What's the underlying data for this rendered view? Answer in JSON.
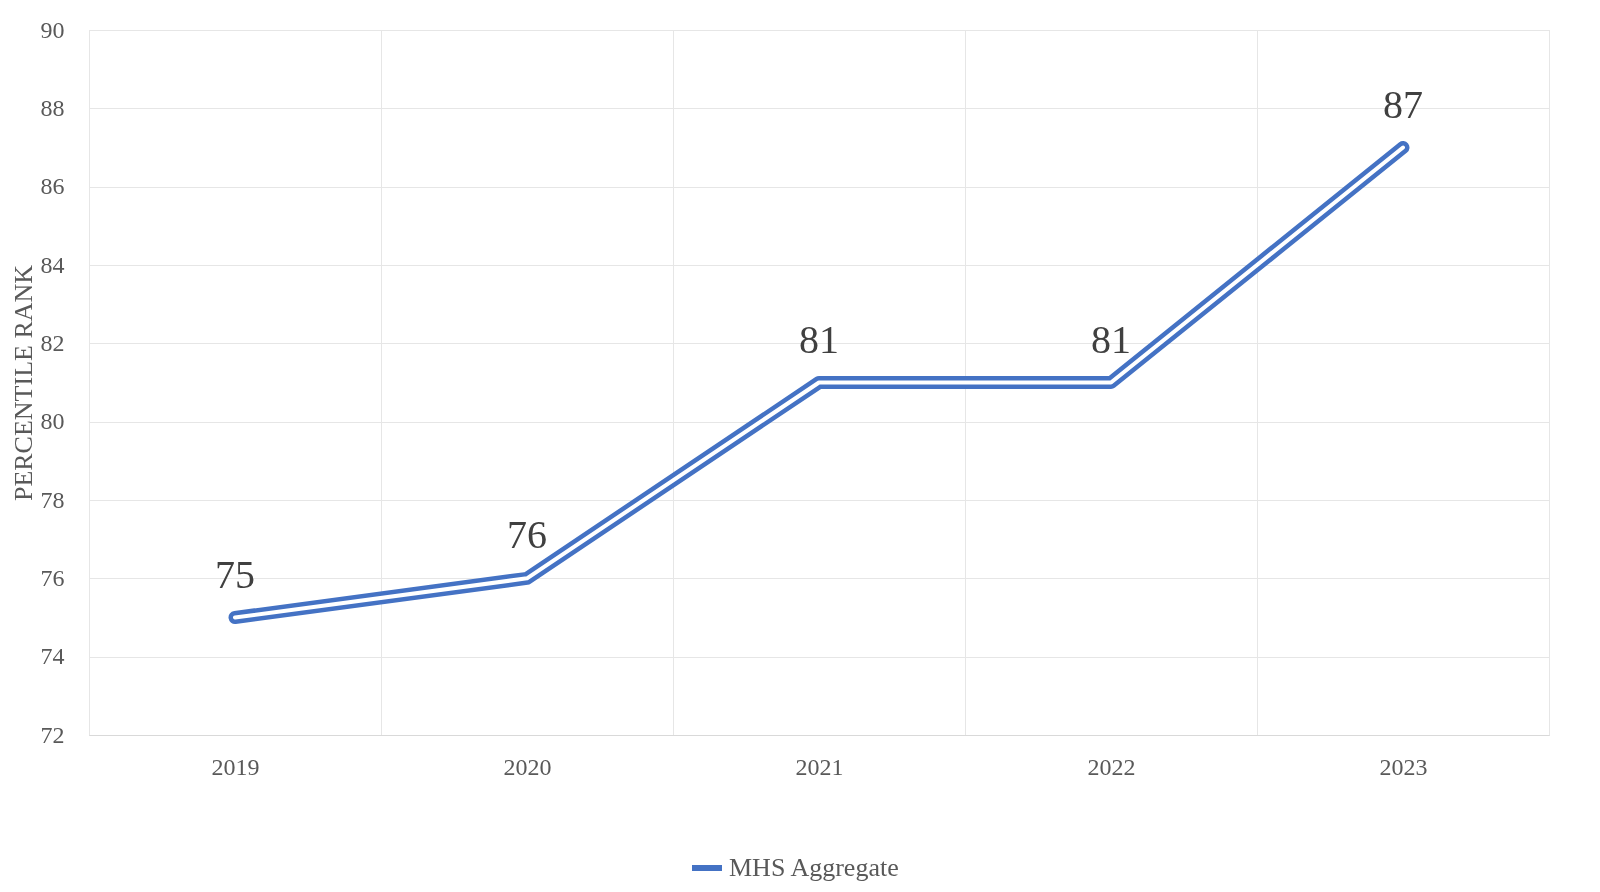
{
  "chart_data": {
    "type": "line",
    "ylabel": "PERCENTILE RANK",
    "categories": [
      "2019",
      "2020",
      "2021",
      "2022",
      "2023"
    ],
    "series": [
      {
        "name": "MHS Aggregate",
        "color": "#4472c4",
        "values": [
          75,
          76,
          81,
          81,
          87
        ]
      }
    ],
    "ylim": [
      72,
      90
    ],
    "yticks": [
      72,
      74,
      76,
      78,
      80,
      82,
      84,
      86,
      88,
      90
    ],
    "grid": true,
    "data_labels": true,
    "legend": "bottom",
    "marker": "none",
    "line_style": "solid"
  }
}
